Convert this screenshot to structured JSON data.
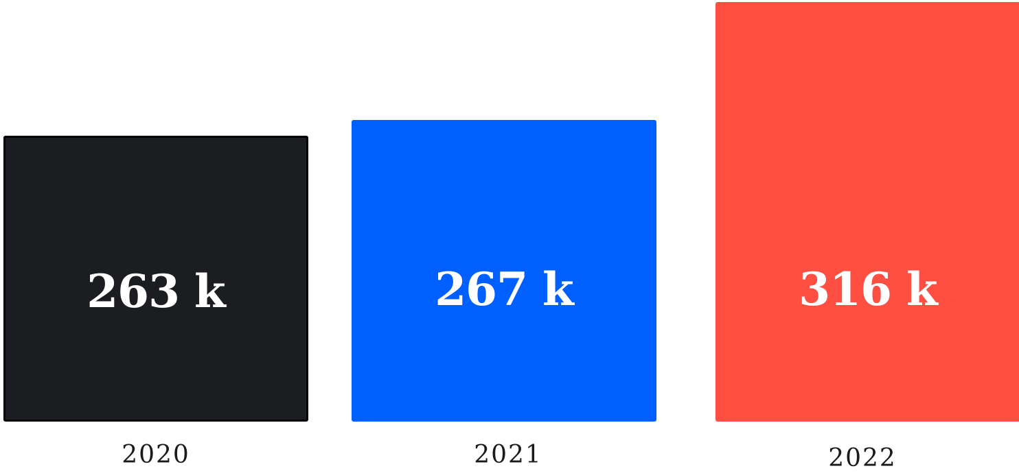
{
  "chart_data": {
    "type": "bar",
    "categories": [
      "2020",
      "2021",
      "2022"
    ],
    "values": [
      263,
      267,
      316
    ],
    "value_labels": [
      "263 k",
      "267 k",
      "316 k"
    ],
    "colors": [
      "#1c1d21",
      "#0060ff",
      "#ff4f42"
    ],
    "outline_color": "#000000",
    "title": "",
    "xlabel": "",
    "ylabel": "",
    "ylim": [
      0,
      316
    ],
    "grid": false,
    "legend": "none"
  }
}
